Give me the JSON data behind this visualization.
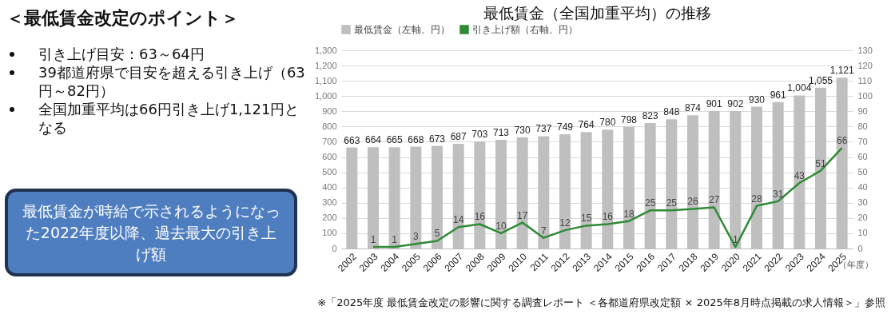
{
  "chart_data": [
    {
      "type": "other",
      "title": "＜最低賃金改定のポイント＞",
      "annotations": [
        "引き上げ目安：63～64円",
        "39都道府県で目安を超える引き上げ（63円～82円）",
        "全国加重平均は66円引き上げ1,121円となる"
      ]
    },
    {
      "type": "other",
      "annotations": [
        "最低賃金が時給で示されるようになった2022年度以降、過去最大の引き上げ額"
      ]
    },
    {
      "type": "bar",
      "title": "最低賃金（全国加重平均）の推移",
      "xlabel": "（年度）",
      "categories": [
        "2002",
        "2003",
        "2004",
        "2005",
        "2006",
        "2007",
        "2008",
        "2009",
        "2010",
        "2011",
        "2012",
        "2013",
        "2014",
        "2015",
        "2016",
        "2017",
        "2018",
        "2019",
        "2020",
        "2021",
        "2022",
        "2023",
        "2024",
        "2025"
      ],
      "series": [
        {
          "name": "最低賃金（左軸、円）",
          "type": "bar",
          "color": "#bfbfbf",
          "values": [
            663,
            664,
            665,
            668,
            673,
            687,
            703,
            713,
            730,
            737,
            749,
            764,
            780,
            798,
            823,
            848,
            874,
            901,
            902,
            930,
            961,
            1004,
            1055,
            1121
          ],
          "value_labels": [
            "663",
            "664",
            "665",
            "668",
            "673",
            "687",
            "703",
            "713",
            "730",
            "737",
            "749",
            "764",
            "780",
            "798",
            "823",
            "848",
            "874",
            "901",
            "902",
            "930",
            "961",
            "1,004",
            "1,055",
            "1,121"
          ]
        },
        {
          "name": "引き上げ額（右軸、円）",
          "type": "line",
          "axis": "y2",
          "color": "#2e8b34",
          "values": [
            null,
            1,
            1,
            3,
            5,
            14,
            16,
            10,
            17,
            7,
            12,
            15,
            16,
            18,
            25,
            25,
            26,
            27,
            1,
            28,
            31,
            43,
            51,
            66
          ]
        }
      ],
      "ylim": [
        0,
        1300
      ],
      "yticks": [
        0,
        100,
        200,
        300,
        400,
        500,
        600,
        700,
        800,
        900,
        {
          "value": 1000,
          "label": "1,000"
        },
        {
          "value": 1100,
          "label": "1,100"
        },
        {
          "value": 1200,
          "label": "1,200"
        },
        {
          "value": 1300,
          "label": "1,300"
        }
      ],
      "y2lim": [
        0,
        130
      ],
      "y2ticks": [
        0,
        10,
        20,
        30,
        40,
        50,
        60,
        70,
        80,
        90,
        100,
        110,
        120,
        130
      ],
      "data_labels": true,
      "grid": "y",
      "legend": "top",
      "marker": "none",
      "line_style": "solid",
      "annotations": [
        "※「2025年度 最低賃金改定の影響に関する調査レポート ＜各都道府県改定額 × 2025年8月時点掲載の求人情報＞」参照"
      ]
    }
  ]
}
